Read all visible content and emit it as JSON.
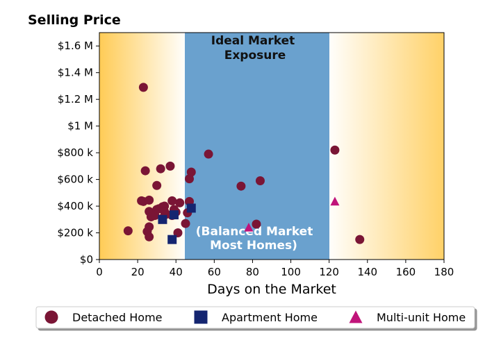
{
  "chart_data": {
    "type": "scatter",
    "title": "Selling Price",
    "xlabel": "Days on the Market",
    "ylabel": "",
    "xlim": [
      0,
      180
    ],
    "ylim": [
      0,
      1700000
    ],
    "x_ticks": [
      {
        "value": 0,
        "label": "0"
      },
      {
        "value": 20,
        "label": "20"
      },
      {
        "value": 40,
        "label": "40"
      },
      {
        "value": 60,
        "label": "60"
      },
      {
        "value": 80,
        "label": "80"
      },
      {
        "value": 100,
        "label": "100"
      },
      {
        "value": 120,
        "label": "120"
      },
      {
        "value": 140,
        "label": "140"
      },
      {
        "value": 160,
        "label": "160"
      },
      {
        "value": 180,
        "label": "180"
      }
    ],
    "y_ticks": [
      {
        "value": 0,
        "label": "$0"
      },
      {
        "value": 200000,
        "label": "$200 k"
      },
      {
        "value": 400000,
        "label": "$400 k"
      },
      {
        "value": 600000,
        "label": "$600 k"
      },
      {
        "value": 800000,
        "label": "$800 k"
      },
      {
        "value": 1000000,
        "label": "$1 M"
      },
      {
        "value": 1200000,
        "label": "$1.2 M"
      },
      {
        "value": 1400000,
        "label": "$1.4 M"
      },
      {
        "value": 1600000,
        "label": "$1.6 M"
      }
    ],
    "grid": false,
    "legend_position": "bottom",
    "colors": {
      "zone_band": "#6aa1ce",
      "edge_gradient": "#ffc94d",
      "band_white_text": "#ffffff",
      "band_dark_text": "#111111"
    },
    "bands": [
      {
        "x_start": 44.5,
        "x_end": 120,
        "label_top": "Ideal Market\nExposure",
        "label_bottom": "(Balanced Market\nMost Homes)"
      }
    ],
    "series": [
      {
        "name": "Detached Home",
        "marker": "circle",
        "color": "#7a1535",
        "points": [
          [
            23,
            1290000
          ],
          [
            24,
            665000
          ],
          [
            32,
            680000
          ],
          [
            37,
            700000
          ],
          [
            30,
            555000
          ],
          [
            22,
            440000
          ],
          [
            23,
            435000
          ],
          [
            26,
            445000
          ],
          [
            26,
            360000
          ],
          [
            27,
            320000
          ],
          [
            29,
            330000
          ],
          [
            30,
            375000
          ],
          [
            31,
            380000
          ],
          [
            33,
            395000
          ],
          [
            34,
            400000
          ],
          [
            34,
            360000
          ],
          [
            35,
            340000
          ],
          [
            33,
            310000
          ],
          [
            38,
            440000
          ],
          [
            39,
            375000
          ],
          [
            40,
            355000
          ],
          [
            38,
            330000
          ],
          [
            42,
            425000
          ],
          [
            46,
            350000
          ],
          [
            47,
            435000
          ],
          [
            47,
            605000
          ],
          [
            48,
            655000
          ],
          [
            45,
            270000
          ],
          [
            41,
            200000
          ],
          [
            25,
            210000
          ],
          [
            26,
            245000
          ],
          [
            26,
            170000
          ],
          [
            15,
            215000
          ],
          [
            57,
            790000
          ],
          [
            74,
            550000
          ],
          [
            84,
            590000
          ],
          [
            82,
            265000
          ],
          [
            123,
            820000
          ],
          [
            136,
            150000
          ]
        ]
      },
      {
        "name": "Apartment Home",
        "marker": "square",
        "color": "#142570",
        "points": [
          [
            33,
            300000
          ],
          [
            39,
            335000
          ],
          [
            48,
            385000
          ],
          [
            38,
            150000
          ]
        ]
      },
      {
        "name": "Multi-unit Home",
        "marker": "triangle",
        "color": "#c0147a",
        "points": [
          [
            78,
            240000
          ],
          [
            123,
            435000
          ]
        ]
      }
    ]
  }
}
